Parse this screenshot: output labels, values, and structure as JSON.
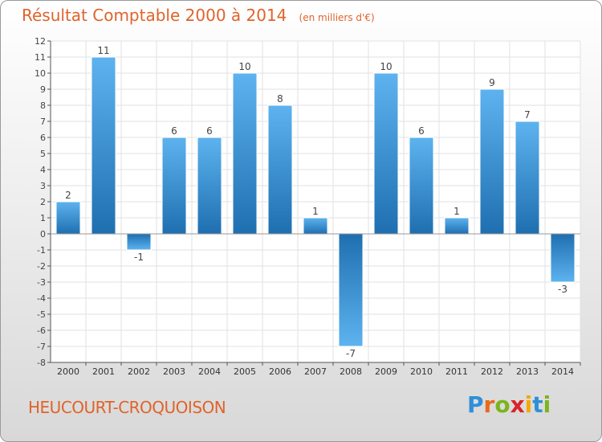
{
  "header": {
    "title": "Résultat Comptable 2000 à 2014",
    "unit": "(en milliers d'€)"
  },
  "footer": {
    "commune": "HEUCOURT-CROQUOISON",
    "logo_letters": [
      "P",
      "r",
      "o",
      "x",
      "i",
      "t",
      "i"
    ],
    "logo_colors": [
      "#2f8fd8",
      "#e86a1a",
      "#7ab51d",
      "#d9242a",
      "#f5a800",
      "#2f8fd8",
      "#7ab51d"
    ]
  },
  "colors": {
    "bar_light": "#5db3ef",
    "bar_dark": "#1f6fb0",
    "grid": "#e2e2e2",
    "axis": "#555555",
    "title": "#e0632a"
  },
  "chart_data": {
    "type": "bar",
    "title": "Résultat Comptable 2000 à 2014",
    "xlabel": "",
    "ylabel": "",
    "ylim": [
      -8,
      12
    ],
    "yticks": [
      -8,
      -7,
      -6,
      -5,
      -4,
      -3,
      -2,
      -1,
      0,
      1,
      2,
      3,
      4,
      5,
      6,
      7,
      8,
      9,
      10,
      11,
      12
    ],
    "categories": [
      "2000",
      "2001",
      "2002",
      "2003",
      "2004",
      "2005",
      "2006",
      "2007",
      "2008",
      "2009",
      "2010",
      "2011",
      "2012",
      "2013",
      "2014"
    ],
    "values": [
      2,
      11,
      -1,
      6,
      6,
      10,
      8,
      1,
      -7,
      10,
      6,
      1,
      9,
      7,
      -3
    ]
  }
}
